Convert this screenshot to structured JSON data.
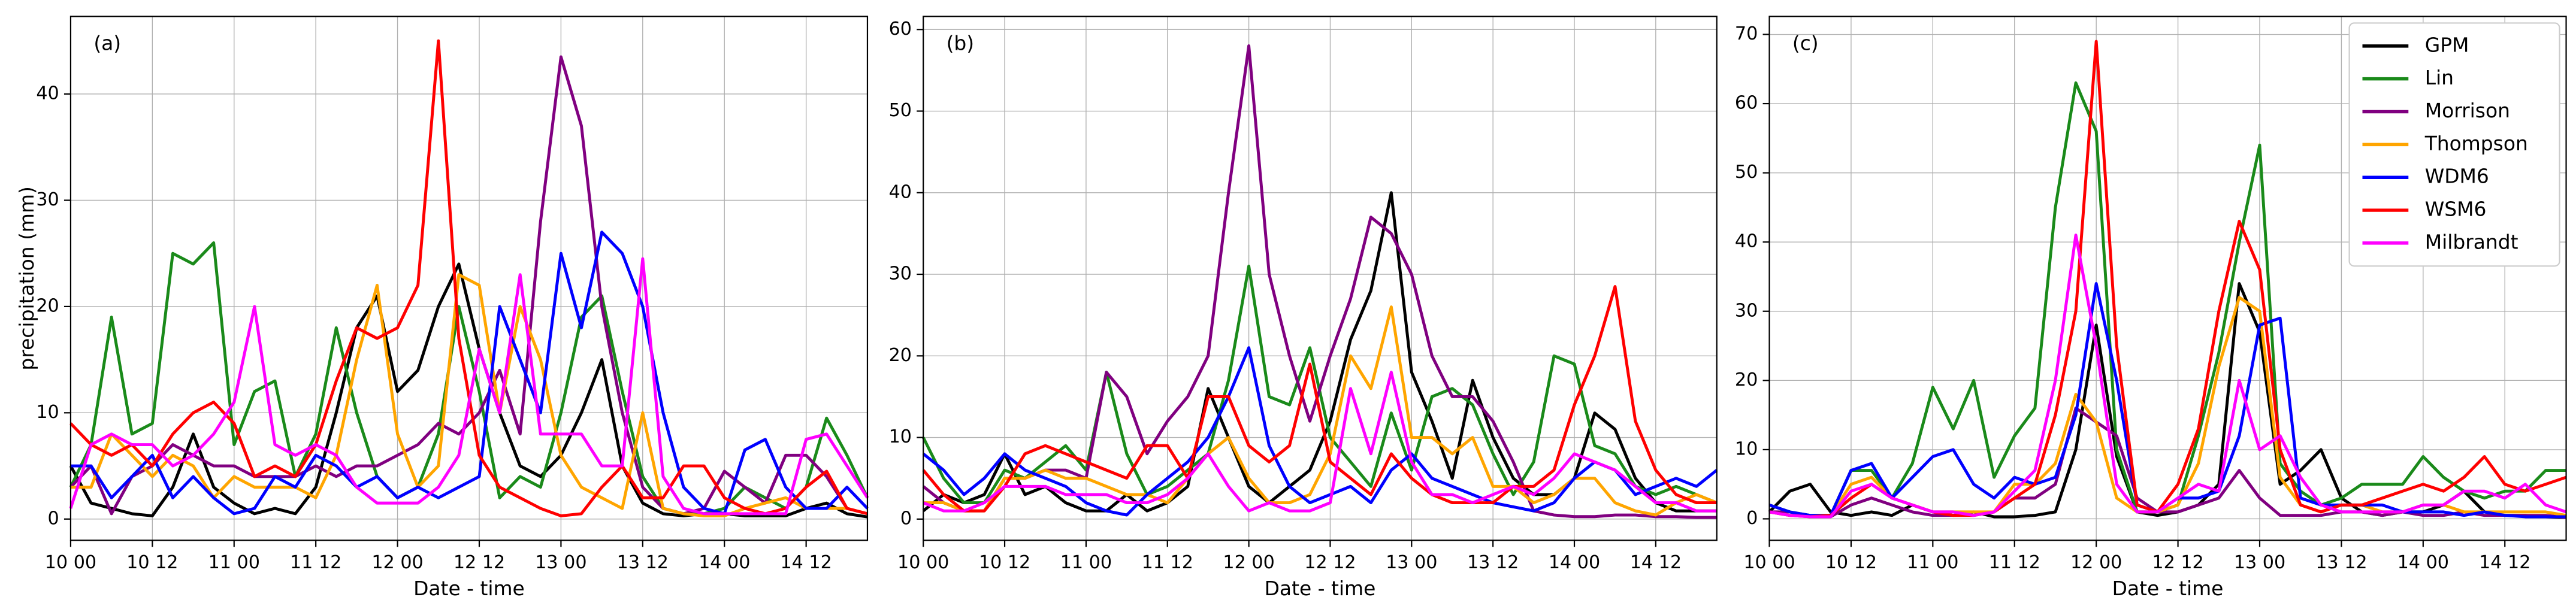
{
  "chart_data": [
    {
      "type": "line",
      "panel_label": "(a)",
      "y_label": "precipitation (mm)",
      "x_label": "Date - time",
      "x": [
        0,
        3,
        6,
        9,
        12,
        15,
        18,
        21,
        24,
        27,
        30,
        33,
        36,
        39,
        42,
        45,
        48,
        51,
        54,
        57,
        60,
        63,
        66,
        69,
        72,
        75,
        78,
        81,
        84,
        87,
        90,
        93,
        96,
        99,
        102,
        105,
        108,
        111,
        114,
        117
      ],
      "xlim": [
        0,
        117
      ],
      "ylim": [
        -2,
        47.3
      ],
      "yticks": [
        0,
        10,
        20,
        30,
        40
      ],
      "xticks": [
        {
          "value": 0,
          "label": "10 00"
        },
        {
          "value": 12,
          "label": "10 12"
        },
        {
          "value": 24,
          "label": "11 00"
        },
        {
          "value": 36,
          "label": "11 12"
        },
        {
          "value": 48,
          "label": "12 00"
        },
        {
          "value": 60,
          "label": "12 12"
        },
        {
          "value": 72,
          "label": "13 00"
        },
        {
          "value": 84,
          "label": "13 12"
        },
        {
          "value": 96,
          "label": "14 00"
        },
        {
          "value": 108,
          "label": "14 12"
        }
      ],
      "grid": true,
      "series": [
        {
          "color": "#000000",
          "values": [
            5,
            1.5,
            1,
            0.5,
            0.3,
            3,
            8,
            3,
            1.5,
            0.5,
            1,
            0.5,
            3,
            10,
            18,
            21,
            12,
            14,
            20,
            24,
            16,
            10,
            5,
            4,
            6,
            10,
            15,
            5,
            1.5,
            0.5,
            0.3,
            0.5,
            0.5,
            0.3,
            0.3,
            0.3,
            1,
            1.5,
            0.5,
            0.2
          ]
        },
        {
          "color": "#1a8a1a",
          "values": [
            3,
            7,
            19,
            8,
            9,
            25,
            24,
            26,
            7,
            12,
            13,
            4,
            8,
            18,
            10,
            4,
            2,
            3,
            8,
            20,
            12,
            2,
            4,
            3,
            10,
            19,
            21,
            12,
            4,
            1,
            0.5,
            0.5,
            1,
            3,
            2,
            1,
            3,
            9.5,
            6,
            2
          ]
        },
        {
          "color": "#800080",
          "values": [
            3,
            5,
            0.5,
            4,
            5,
            7,
            6,
            5,
            5,
            4,
            4,
            4,
            5,
            4,
            5,
            5,
            6,
            7,
            9,
            8,
            10,
            14,
            8,
            28,
            43.5,
            37,
            20,
            10,
            3,
            1,
            0.5,
            1,
            4.5,
            3,
            1.5,
            6,
            6,
            4,
            1,
            0.5
          ]
        },
        {
          "color": "#ffa500",
          "values": [
            3,
            3,
            8,
            6,
            4,
            6,
            5,
            2,
            4,
            3,
            3,
            3,
            2,
            6,
            15,
            22,
            8,
            3,
            5,
            23,
            22,
            10,
            20,
            15,
            6,
            3,
            2,
            1,
            10,
            1,
            0.5,
            0.3,
            0.3,
            1,
            1.5,
            2,
            1,
            1,
            1,
            0.5
          ]
        },
        {
          "color": "#0000ff",
          "values": [
            5,
            5,
            2,
            4,
            6,
            2,
            4,
            2,
            0.5,
            1,
            4,
            3,
            6,
            5,
            3,
            4,
            2,
            3,
            2,
            3,
            4,
            20,
            15,
            10,
            25,
            18,
            27,
            25,
            20,
            10,
            3,
            1,
            0.5,
            6.5,
            7.5,
            3,
            1,
            1,
            3,
            1
          ]
        },
        {
          "color": "#ff0000",
          "values": [
            9,
            7,
            6,
            7,
            5,
            8,
            10,
            11,
            9,
            4,
            5,
            4,
            7,
            13,
            18,
            17,
            18,
            22,
            45,
            17,
            6,
            3,
            2,
            1,
            0.3,
            0.5,
            3,
            5,
            2,
            2,
            5,
            5,
            2,
            1,
            0.5,
            1,
            3,
            4.5,
            1,
            0.5
          ]
        },
        {
          "color": "#ff00ff",
          "values": [
            1,
            7,
            8,
            7,
            7,
            5,
            6,
            8,
            11,
            20,
            7,
            6,
            7,
            6,
            3,
            1.5,
            1.5,
            1.5,
            3,
            6,
            16,
            10,
            23,
            8,
            8,
            8,
            5,
            5,
            24.5,
            4,
            1,
            0.5,
            0.5,
            0.5,
            0.5,
            0.5,
            7.5,
            8,
            5,
            2
          ]
        }
      ]
    },
    {
      "type": "line",
      "panel_label": "(b)",
      "x_label": "Date - time",
      "x": [
        0,
        3,
        6,
        9,
        12,
        15,
        18,
        21,
        24,
        27,
        30,
        33,
        36,
        39,
        42,
        45,
        48,
        51,
        54,
        57,
        60,
        63,
        66,
        69,
        72,
        75,
        78,
        81,
        84,
        87,
        90,
        93,
        96,
        99,
        102,
        105,
        108,
        111,
        114,
        117
      ],
      "xlim": [
        0,
        117
      ],
      "ylim": [
        -2.6,
        61.6
      ],
      "yticks": [
        0,
        10,
        20,
        30,
        40,
        50,
        60
      ],
      "xticks": [
        {
          "value": 0,
          "label": "10 00"
        },
        {
          "value": 12,
          "label": "10 12"
        },
        {
          "value": 24,
          "label": "11 00"
        },
        {
          "value": 36,
          "label": "11 12"
        },
        {
          "value": 48,
          "label": "12 00"
        },
        {
          "value": 60,
          "label": "12 12"
        },
        {
          "value": 72,
          "label": "13 00"
        },
        {
          "value": 84,
          "label": "13 12"
        },
        {
          "value": 96,
          "label": "14 00"
        },
        {
          "value": 108,
          "label": "14 12"
        }
      ],
      "grid": true,
      "series": [
        {
          "color": "#000000",
          "values": [
            1,
            3,
            2,
            3,
            8,
            3,
            4,
            2,
            1,
            1,
            3,
            1,
            2,
            4,
            16,
            10,
            4,
            2,
            4,
            6,
            12,
            22,
            28,
            40,
            18,
            12,
            5,
            17,
            10,
            5,
            3,
            3,
            5,
            13,
            11,
            5,
            2,
            1,
            1,
            1
          ]
        },
        {
          "color": "#1a8a1a",
          "values": [
            10,
            5,
            2,
            2,
            6,
            5,
            7,
            9,
            6,
            18,
            8,
            3,
            4,
            6,
            8,
            17,
            31,
            15,
            14,
            21,
            10,
            7,
            4,
            13,
            6,
            15,
            16,
            14,
            8,
            3,
            7,
            20,
            19,
            9,
            8,
            4,
            3,
            4,
            3,
            2
          ]
        },
        {
          "color": "#800080",
          "values": [
            4,
            2,
            1,
            1,
            5,
            5,
            6,
            6,
            5,
            18,
            15,
            8,
            12,
            15,
            20,
            40,
            58,
            30,
            20,
            12,
            20,
            27,
            37,
            35,
            30,
            20,
            15,
            15,
            12,
            7,
            1,
            0.5,
            0.3,
            0.3,
            0.5,
            0.5,
            0.3,
            0.3,
            0.2,
            0.2
          ]
        },
        {
          "color": "#ffa500",
          "values": [
            2,
            2,
            1,
            1,
            5,
            5,
            6,
            5,
            5,
            4,
            3,
            3,
            2,
            5,
            8,
            10,
            5,
            2,
            2,
            3,
            8,
            20,
            16,
            26,
            10,
            10,
            8,
            10,
            4,
            4,
            2,
            3,
            5,
            5,
            2,
            1,
            0.5,
            2,
            3,
            2
          ]
        },
        {
          "color": "#0000ff",
          "values": [
            8,
            6,
            3,
            5,
            8,
            6,
            5,
            4,
            2,
            1,
            0.5,
            3,
            5,
            7,
            10,
            15,
            21,
            9,
            4,
            2,
            3,
            4,
            2,
            6,
            8,
            5,
            4,
            3,
            2,
            1.5,
            1,
            2,
            5,
            7,
            6,
            3,
            4,
            5,
            4,
            6
          ]
        },
        {
          "color": "#ff0000",
          "values": [
            6,
            3,
            1,
            1,
            4,
            8,
            9,
            8,
            7,
            6,
            5,
            9,
            9,
            5,
            15,
            15,
            9,
            7,
            9,
            19,
            7,
            5,
            3,
            8,
            5,
            3,
            2,
            2,
            2,
            4,
            4,
            6,
            14,
            20,
            28.5,
            12,
            6,
            3,
            2,
            2
          ]
        },
        {
          "color": "#ff00ff",
          "values": [
            2,
            1,
            1,
            2,
            4,
            4,
            4,
            3,
            3,
            3,
            2,
            2,
            3,
            5,
            8,
            4,
            1,
            2,
            1,
            1,
            2,
            16,
            8,
            18,
            7,
            3,
            3,
            2,
            3,
            4,
            3,
            5,
            8,
            7,
            6,
            4,
            2,
            2,
            1,
            1
          ]
        }
      ]
    },
    {
      "type": "line",
      "panel_label": "(c)",
      "x_label": "Date - time",
      "x": [
        0,
        3,
        6,
        9,
        12,
        15,
        18,
        21,
        24,
        27,
        30,
        33,
        36,
        39,
        42,
        45,
        48,
        51,
        54,
        57,
        60,
        63,
        66,
        69,
        72,
        75,
        78,
        81,
        84,
        87,
        90,
        93,
        96,
        99,
        102,
        105,
        108,
        111,
        114,
        117
      ],
      "xlim": [
        0,
        117
      ],
      "ylim": [
        -3.1,
        72.6
      ],
      "yticks": [
        0,
        10,
        20,
        30,
        40,
        50,
        60,
        70
      ],
      "xticks": [
        {
          "value": 0,
          "label": "10 00"
        },
        {
          "value": 12,
          "label": "10 12"
        },
        {
          "value": 24,
          "label": "11 00"
        },
        {
          "value": 36,
          "label": "11 12"
        },
        {
          "value": 48,
          "label": "12 00"
        },
        {
          "value": 60,
          "label": "12 12"
        },
        {
          "value": 72,
          "label": "13 00"
        },
        {
          "value": 84,
          "label": "13 12"
        },
        {
          "value": 96,
          "label": "14 00"
        },
        {
          "value": 108,
          "label": "14 12"
        }
      ],
      "grid": true,
      "legend": "upper right",
      "series": [
        {
          "name": "GPM",
          "color": "#000000",
          "values": [
            1,
            4,
            5,
            1,
            0.5,
            1,
            0.5,
            2,
            1,
            0.5,
            1,
            0.3,
            0.3,
            0.5,
            1,
            10,
            28,
            9,
            1,
            0.5,
            1,
            2,
            5,
            34,
            27,
            5,
            7,
            10,
            3,
            1,
            0.5,
            1,
            1,
            2,
            4,
            1,
            0.5,
            0.5,
            0.3,
            0.2
          ]
        },
        {
          "name": "Lin",
          "color": "#1a8a1a",
          "values": [
            2,
            1,
            0.5,
            0.5,
            7,
            7,
            3,
            8,
            19,
            13,
            20,
            6,
            12,
            16,
            45,
            63,
            56,
            10,
            1,
            1,
            2,
            12,
            24,
            40,
            54,
            8,
            4,
            2,
            3,
            5,
            5,
            5,
            9,
            6,
            4,
            3,
            4,
            4,
            7,
            7
          ]
        },
        {
          "name": "Morrison",
          "color": "#800080",
          "values": [
            1,
            1,
            0.3,
            0.3,
            2,
            3,
            2,
            1,
            0.5,
            0.5,
            0.5,
            1,
            3,
            3,
            5,
            16,
            14,
            12,
            3,
            1,
            1,
            2,
            3,
            7,
            3,
            0.5,
            0.5,
            0.5,
            1,
            1,
            0.5,
            1,
            0.5,
            0.5,
            1,
            0.5,
            0.5,
            0.5,
            0.5,
            0.2
          ]
        },
        {
          "name": "Thompson",
          "color": "#ffa500",
          "values": [
            1,
            0.5,
            0.5,
            0.5,
            5,
            6,
            3,
            2,
            1,
            1,
            1,
            1,
            5,
            5,
            8,
            18,
            14,
            3,
            1,
            1,
            2,
            8,
            22,
            32,
            30,
            6,
            2,
            1,
            2,
            2,
            1,
            1,
            2,
            2,
            1,
            1,
            1,
            1,
            1,
            0.5
          ]
        },
        {
          "name": "WDM6",
          "color": "#0000ff",
          "values": [
            2,
            1,
            0.5,
            0.5,
            7,
            8,
            3,
            6,
            9,
            10,
            5,
            3,
            6,
            5,
            6,
            15,
            34,
            20,
            2,
            1,
            3,
            3,
            4,
            12,
            28,
            29,
            3,
            2,
            2,
            2,
            2,
            1,
            1,
            1,
            0.5,
            1,
            0.5,
            0.3,
            0.3,
            0.3
          ]
        },
        {
          "name": "WSM6",
          "color": "#ff0000",
          "values": [
            1,
            0.5,
            0.3,
            0.5,
            3,
            5,
            3,
            2,
            1,
            0.5,
            0.5,
            1,
            3,
            5,
            15,
            30,
            69,
            25,
            2,
            1,
            5,
            13,
            30,
            43,
            36,
            10,
            2,
            1,
            2,
            2,
            3,
            4,
            5,
            4,
            6,
            9,
            5,
            4,
            5,
            6
          ]
        },
        {
          "name": "Milbrandt",
          "color": "#ff00ff",
          "values": [
            1,
            0.5,
            0.3,
            0.3,
            4,
            5,
            3,
            2,
            1,
            1,
            0.5,
            1,
            4,
            7,
            20,
            41,
            25,
            5,
            1,
            1,
            3,
            5,
            4,
            20,
            10,
            12,
            6,
            2,
            1,
            1,
            1,
            1,
            2,
            2,
            4,
            4,
            3,
            5,
            2,
            1
          ]
        }
      ]
    }
  ]
}
